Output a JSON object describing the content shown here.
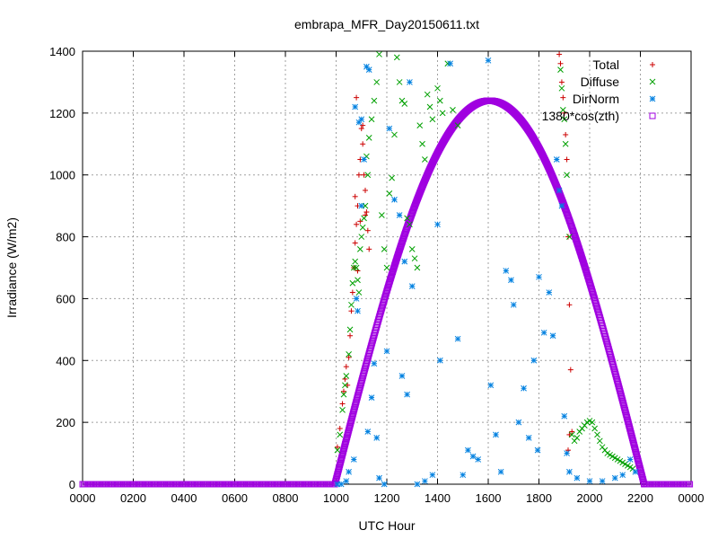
{
  "chart_data": {
    "type": "scatter",
    "title": "embrapa_MFR_Day20150611.txt",
    "xlabel": "UTC Hour",
    "ylabel": "Irradiance (W/m2)",
    "xlim": [
      0,
      24
    ],
    "ylim": [
      0,
      1400
    ],
    "x_ticks": [
      0,
      2,
      4,
      6,
      8,
      10,
      12,
      14,
      16,
      18,
      20,
      22,
      24
    ],
    "x_tick_labels": [
      "0000",
      "0200",
      "0400",
      "0600",
      "0800",
      "1000",
      "1200",
      "1400",
      "1600",
      "1800",
      "2000",
      "2200",
      "0000"
    ],
    "y_ticks": [
      0,
      200,
      400,
      600,
      800,
      1000,
      1200,
      1400
    ],
    "grid": true,
    "legend_position": "top-right",
    "series": [
      {
        "name": "Total",
        "marker": "plus",
        "color": "#cc0000",
        "points": [
          [
            10.05,
            120
          ],
          [
            10.15,
            180
          ],
          [
            10.25,
            260
          ],
          [
            10.3,
            300
          ],
          [
            10.35,
            340
          ],
          [
            10.4,
            380
          ],
          [
            10.45,
            320
          ],
          [
            10.5,
            410
          ],
          [
            10.55,
            480
          ],
          [
            10.6,
            560
          ],
          [
            10.65,
            620
          ],
          [
            10.7,
            700
          ],
          [
            10.75,
            780
          ],
          [
            10.8,
            840
          ],
          [
            10.85,
            900
          ],
          [
            10.9,
            1000
          ],
          [
            10.95,
            1050
          ],
          [
            11.0,
            1150
          ],
          [
            11.05,
            1100
          ],
          [
            11.1,
            1000
          ],
          [
            11.15,
            950
          ],
          [
            11.2,
            880
          ],
          [
            11.25,
            820
          ],
          [
            11.3,
            760
          ],
          [
            10.75,
            930
          ],
          [
            10.8,
            1250
          ],
          [
            11.05,
            1160
          ],
          [
            10.95,
            850
          ],
          [
            11.15,
            870
          ],
          [
            10.85,
            690
          ],
          [
            18.8,
            1390
          ],
          [
            18.85,
            1360
          ],
          [
            18.9,
            1300
          ],
          [
            18.95,
            1250
          ],
          [
            19.0,
            1200
          ],
          [
            19.05,
            1130
          ],
          [
            19.1,
            1050
          ],
          [
            19.15,
            800
          ],
          [
            19.2,
            580
          ],
          [
            19.25,
            370
          ],
          [
            19.2,
            160
          ],
          [
            19.15,
            110
          ],
          [
            19.3,
            170
          ]
        ]
      },
      {
        "name": "Diffuse",
        "marker": "cross",
        "color": "#00a000",
        "points": [
          [
            10.05,
            110
          ],
          [
            10.15,
            160
          ],
          [
            10.25,
            240
          ],
          [
            10.3,
            290
          ],
          [
            10.35,
            320
          ],
          [
            10.4,
            350
          ],
          [
            10.5,
            420
          ],
          [
            10.55,
            500
          ],
          [
            10.6,
            580
          ],
          [
            10.65,
            650
          ],
          [
            10.7,
            700
          ],
          [
            10.75,
            720
          ],
          [
            10.8,
            700
          ],
          [
            10.85,
            660
          ],
          [
            10.9,
            620
          ],
          [
            10.95,
            760
          ],
          [
            11.0,
            800
          ],
          [
            11.05,
            830
          ],
          [
            11.1,
            860
          ],
          [
            11.15,
            900
          ],
          [
            11.2,
            1060
          ],
          [
            11.25,
            1000
          ],
          [
            11.3,
            1120
          ],
          [
            11.4,
            1180
          ],
          [
            11.5,
            1240
          ],
          [
            11.6,
            1300
          ],
          [
            11.7,
            1390
          ],
          [
            11.8,
            870
          ],
          [
            11.9,
            760
          ],
          [
            12.0,
            700
          ],
          [
            12.1,
            940
          ],
          [
            12.2,
            990
          ],
          [
            12.3,
            1130
          ],
          [
            12.4,
            1380
          ],
          [
            12.5,
            1300
          ],
          [
            12.6,
            1240
          ],
          [
            12.7,
            1230
          ],
          [
            12.8,
            860
          ],
          [
            12.9,
            840
          ],
          [
            13.0,
            760
          ],
          [
            13.1,
            730
          ],
          [
            13.2,
            700
          ],
          [
            13.3,
            1160
          ],
          [
            13.4,
            1100
          ],
          [
            13.5,
            1050
          ],
          [
            13.6,
            1260
          ],
          [
            13.7,
            1220
          ],
          [
            13.8,
            1180
          ],
          [
            14.0,
            1280
          ],
          [
            14.1,
            1240
          ],
          [
            14.2,
            1200
          ],
          [
            14.4,
            1360
          ],
          [
            14.6,
            1210
          ],
          [
            14.8,
            1160
          ],
          [
            18.85,
            1340
          ],
          [
            18.9,
            1280
          ],
          [
            18.95,
            1210
          ],
          [
            19.0,
            1180
          ],
          [
            19.05,
            1100
          ],
          [
            19.1,
            1000
          ],
          [
            19.2,
            800
          ],
          [
            19.3,
            160
          ],
          [
            19.4,
            140
          ],
          [
            19.5,
            150
          ],
          [
            19.6,
            170
          ],
          [
            19.7,
            180
          ],
          [
            19.8,
            190
          ],
          [
            19.9,
            200
          ],
          [
            20.0,
            205
          ],
          [
            20.1,
            200
          ],
          [
            20.2,
            180
          ],
          [
            20.3,
            160
          ],
          [
            20.4,
            140
          ],
          [
            20.5,
            120
          ],
          [
            20.6,
            110
          ],
          [
            20.7,
            100
          ],
          [
            20.8,
            95
          ],
          [
            20.9,
            90
          ],
          [
            21.0,
            85
          ],
          [
            21.1,
            80
          ],
          [
            21.2,
            75
          ],
          [
            21.3,
            70
          ],
          [
            21.4,
            65
          ],
          [
            21.5,
            60
          ],
          [
            21.6,
            55
          ],
          [
            21.7,
            50
          ]
        ]
      },
      {
        "name": "DirNorm",
        "marker": "star",
        "color": "#0080e0",
        "points": [
          [
            10.05,
            0
          ],
          [
            10.2,
            0
          ],
          [
            10.4,
            10
          ],
          [
            10.5,
            40
          ],
          [
            10.7,
            80
          ],
          [
            10.75,
            1220
          ],
          [
            10.9,
            1170
          ],
          [
            11.0,
            1180
          ],
          [
            10.8,
            600
          ],
          [
            10.85,
            560
          ],
          [
            11.0,
            900
          ],
          [
            11.1,
            1050
          ],
          [
            11.2,
            1350
          ],
          [
            11.3,
            1340
          ],
          [
            11.25,
            170
          ],
          [
            11.4,
            280
          ],
          [
            11.5,
            390
          ],
          [
            11.6,
            150
          ],
          [
            11.7,
            20
          ],
          [
            11.9,
            0
          ],
          [
            12.0,
            430
          ],
          [
            12.1,
            1150
          ],
          [
            12.3,
            920
          ],
          [
            12.5,
            870
          ],
          [
            12.6,
            350
          ],
          [
            12.7,
            720
          ],
          [
            12.8,
            290
          ],
          [
            12.9,
            1300
          ],
          [
            13.0,
            640
          ],
          [
            13.2,
            0
          ],
          [
            13.5,
            10
          ],
          [
            13.8,
            30
          ],
          [
            14.0,
            840
          ],
          [
            14.1,
            400
          ],
          [
            14.5,
            1360
          ],
          [
            14.8,
            470
          ],
          [
            15.0,
            30
          ],
          [
            15.2,
            110
          ],
          [
            15.4,
            90
          ],
          [
            15.6,
            80
          ],
          [
            16.0,
            1370
          ],
          [
            16.1,
            320
          ],
          [
            16.3,
            160
          ],
          [
            16.5,
            40
          ],
          [
            16.7,
            690
          ],
          [
            16.9,
            660
          ],
          [
            17.0,
            580
          ],
          [
            17.2,
            200
          ],
          [
            17.4,
            310
          ],
          [
            17.6,
            150
          ],
          [
            17.8,
            400
          ],
          [
            17.95,
            110
          ],
          [
            18.0,
            670
          ],
          [
            18.2,
            490
          ],
          [
            18.4,
            620
          ],
          [
            18.55,
            480
          ],
          [
            18.7,
            1050
          ],
          [
            18.8,
            950
          ],
          [
            18.9,
            900
          ],
          [
            19.0,
            220
          ],
          [
            19.1,
            100
          ],
          [
            19.2,
            40
          ],
          [
            19.5,
            20
          ],
          [
            20.0,
            10
          ],
          [
            20.5,
            10
          ],
          [
            21.0,
            20
          ],
          [
            21.3,
            30
          ],
          [
            21.6,
            80
          ],
          [
            21.8,
            40
          ]
        ]
      },
      {
        "name": "1380*cos(zth)",
        "marker": "square",
        "color": "#a000e0",
        "peak": 1240,
        "peak_x": 16.05,
        "sunrise_x": 9.95,
        "sunset_x": 22.15
      }
    ]
  }
}
